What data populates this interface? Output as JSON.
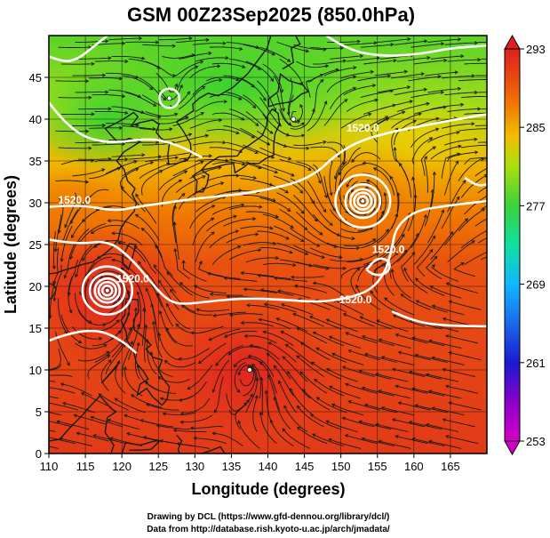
{
  "title": "GSM 00Z23Sep2025 (850.0hPa)",
  "xlabel": "Longitude (degrees)",
  "ylabel": "Latitude  (degrees)",
  "credits": [
    "Drawing by DCL (https://www.gfd-dennou.org/library/dcl/)",
    "Data from http://database.rish.kyoto-u.ac.jp/arch/jmadata/"
  ],
  "map": {
    "lon_range": [
      110,
      170
    ],
    "lat_range": [
      0,
      50
    ],
    "x_ticks": [
      "110",
      "115",
      "120",
      "125",
      "130",
      "135",
      "140",
      "145",
      "150",
      "155",
      "160",
      "165"
    ],
    "y_ticks": [
      "0",
      "5",
      "10",
      "15",
      "20",
      "25",
      "30",
      "35",
      "40",
      "45"
    ],
    "grid_step_deg": 5,
    "colorbar": {
      "ticks": [
        "293",
        "285",
        "277",
        "269",
        "261",
        "253"
      ],
      "range": [
        253,
        293
      ],
      "stops": [
        {
          "value": 253,
          "color": "#d400c8"
        },
        {
          "value": 257,
          "color": "#8a00c8"
        },
        {
          "value": 261,
          "color": "#1a1ad0"
        },
        {
          "value": 265,
          "color": "#1a6ae8"
        },
        {
          "value": 269,
          "color": "#10b8ff"
        },
        {
          "value": 273,
          "color": "#10e0a0"
        },
        {
          "value": 277,
          "color": "#3ad23a"
        },
        {
          "value": 281,
          "color": "#a8e010"
        },
        {
          "value": 284,
          "color": "#f0c000"
        },
        {
          "value": 287,
          "color": "#f08000"
        },
        {
          "value": 290,
          "color": "#e84a10"
        },
        {
          "value": 293,
          "color": "#e02020"
        }
      ]
    },
    "contour_labels": [
      {
        "text": "1520.0",
        "lon": 113.5,
        "lat": 29.9
      },
      {
        "text": "1520.0",
        "lon": 121.5,
        "lat": 20.5
      },
      {
        "text": "1520.0",
        "lon": 152.0,
        "lat": 18.0
      },
      {
        "text": "1520.0",
        "lon": 156.5,
        "lat": 24.0
      },
      {
        "text": "1520.0",
        "lon": 153.0,
        "lat": 38.5
      }
    ],
    "vortices": [
      {
        "name": "typhoon-west",
        "lon": 118.0,
        "lat": 19.5
      },
      {
        "name": "typhoon-east",
        "lon": 153.0,
        "lat": 30.2
      },
      {
        "name": "low-north",
        "lon": 143.5,
        "lat": 40.0
      },
      {
        "name": "low-manchuria",
        "lon": 126.5,
        "lat": 42.5
      },
      {
        "name": "low-south",
        "lon": 137.5,
        "lat": 10.0
      }
    ]
  }
}
